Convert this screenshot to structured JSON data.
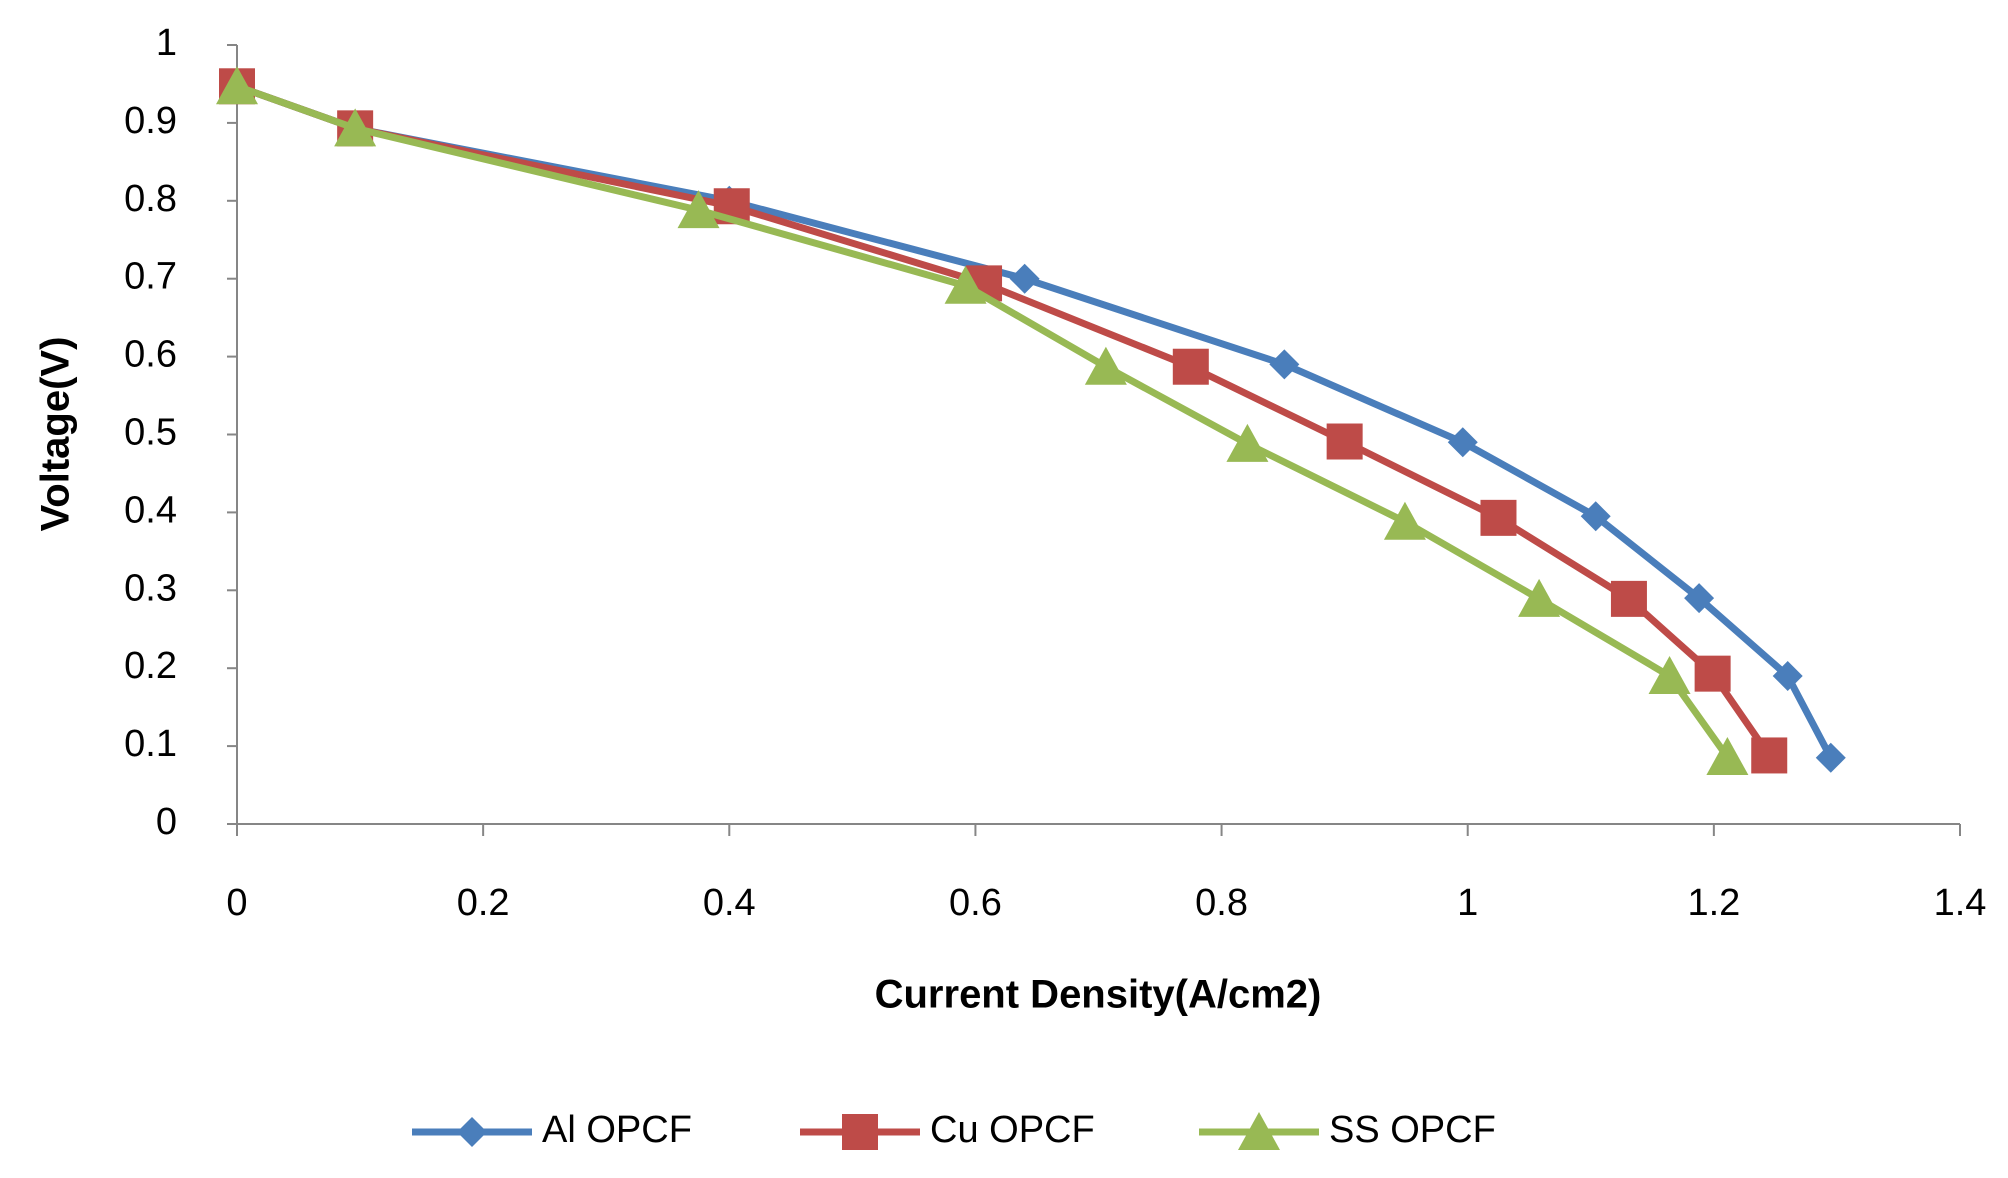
{
  "chart_data": {
    "type": "line",
    "x_label": "Current Density(A/cm2)",
    "y_label": "Voltage(V)",
    "xlim": [
      0,
      1.4
    ],
    "xticks": [
      0,
      0.2,
      0.4,
      0.6,
      0.8,
      1,
      1.2,
      1.4
    ],
    "ylim": [
      0,
      1
    ],
    "yticks": [
      0,
      0.1,
      0.2,
      0.3,
      0.4,
      0.5,
      0.6,
      0.7,
      0.8,
      0.9,
      1
    ],
    "grid": false,
    "legend": "bottom",
    "series": [
      {
        "name": "Al OPCF",
        "color": "#4a7ebb",
        "marker": "diamond",
        "x": [
          0,
          0.096,
          0.4,
          0.64,
          0.851,
          0.996,
          1.104,
          1.188,
          1.26,
          1.295
        ],
        "values": [
          0.947,
          0.893,
          0.8,
          0.7,
          0.59,
          0.49,
          0.395,
          0.29,
          0.19,
          0.085
        ]
      },
      {
        "name": "Cu OPCF",
        "color": "#be4b48",
        "marker": "square",
        "x": [
          0,
          0.096,
          0.402,
          0.607,
          0.775,
          0.9,
          1.025,
          1.131,
          1.199,
          1.245
        ],
        "values": [
          0.947,
          0.893,
          0.793,
          0.694,
          0.587,
          0.491,
          0.393,
          0.289,
          0.193,
          0.088
        ]
      },
      {
        "name": "SS OPCF",
        "color": "#98b954",
        "marker": "triangle",
        "x": [
          0,
          0.096,
          0.375,
          0.592,
          0.706,
          0.821,
          0.949,
          1.058,
          1.164,
          1.211
        ],
        "values": [
          0.947,
          0.893,
          0.788,
          0.691,
          0.587,
          0.488,
          0.388,
          0.289,
          0.19,
          0.086
        ]
      }
    ]
  }
}
